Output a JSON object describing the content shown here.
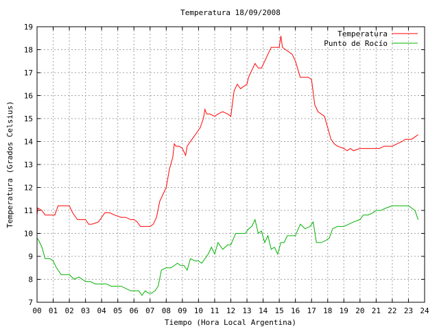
{
  "chart_data": {
    "type": "line",
    "title": "Temperatura 18/09/2008",
    "xlabel": "Tiempo (Hora Local Argentina)",
    "ylabel": "Temperatura (Grados Celsius)",
    "xlim": [
      0,
      24
    ],
    "ylim": [
      7,
      19
    ],
    "grid": true,
    "legend_position": "top-right",
    "x_ticks": [
      {
        "v": 0,
        "label": "00"
      },
      {
        "v": 1,
        "label": "01"
      },
      {
        "v": 2,
        "label": "02"
      },
      {
        "v": 3,
        "label": "03"
      },
      {
        "v": 4,
        "label": "04"
      },
      {
        "v": 5,
        "label": "05"
      },
      {
        "v": 6,
        "label": "06"
      },
      {
        "v": 7,
        "label": "07"
      },
      {
        "v": 8,
        "label": "08"
      },
      {
        "v": 9,
        "label": "09"
      },
      {
        "v": 10,
        "label": "10"
      },
      {
        "v": 11,
        "label": "11"
      },
      {
        "v": 12,
        "label": "12"
      },
      {
        "v": 13,
        "label": "13"
      },
      {
        "v": 14,
        "label": "14"
      },
      {
        "v": 15,
        "label": "15"
      },
      {
        "v": 16,
        "label": "16"
      },
      {
        "v": 17,
        "label": "17"
      },
      {
        "v": 18,
        "label": "18"
      },
      {
        "v": 19,
        "label": "19"
      },
      {
        "v": 20,
        "label": "20"
      },
      {
        "v": 21,
        "label": "21"
      },
      {
        "v": 22,
        "label": "22"
      },
      {
        "v": 23,
        "label": "23"
      },
      {
        "v": 24,
        "label": "24"
      }
    ],
    "y_ticks": [
      {
        "v": 7,
        "label": "7"
      },
      {
        "v": 8,
        "label": "8"
      },
      {
        "v": 9,
        "label": "9"
      },
      {
        "v": 10,
        "label": "10"
      },
      {
        "v": 11,
        "label": "11"
      },
      {
        "v": 12,
        "label": "12"
      },
      {
        "v": 13,
        "label": "13"
      },
      {
        "v": 14,
        "label": "14"
      },
      {
        "v": 15,
        "label": "15"
      },
      {
        "v": 16,
        "label": "16"
      },
      {
        "v": 17,
        "label": "17"
      },
      {
        "v": 18,
        "label": "18"
      },
      {
        "v": 19,
        "label": "19"
      }
    ],
    "series": [
      {
        "name": "Temperatura",
        "color": "#ff0000",
        "x": [
          0,
          0.05,
          0.3,
          0.5,
          1.1,
          1.2,
          1.3,
          2.0,
          2.2,
          2.5,
          3.0,
          3.2,
          3.4,
          3.8,
          4.0,
          4.2,
          4.5,
          4.8,
          5.2,
          5.5,
          5.8,
          6.0,
          6.2,
          6.4,
          6.6,
          7.0,
          7.2,
          7.4,
          7.6,
          7.8,
          8.0,
          8.2,
          8.4,
          8.5,
          8.6,
          8.8,
          9.0,
          9.2,
          9.3,
          9.5,
          9.7,
          9.9,
          10.1,
          10.3,
          10.4,
          10.5,
          10.7,
          11.0,
          11.2,
          11.5,
          11.8,
          12.0,
          12.2,
          12.4,
          12.6,
          13.0,
          13.1,
          13.3,
          13.5,
          13.7,
          13.9,
          14.1,
          14.3,
          14.5,
          14.8,
          15.0,
          15.1,
          15.2,
          15.4,
          15.6,
          15.8,
          16.0,
          16.3,
          16.8,
          17.0,
          17.2,
          17.4,
          17.8,
          18.0,
          18.2,
          18.4,
          18.6,
          19.0,
          19.2,
          19.4,
          19.6,
          20.0,
          20.4,
          20.8,
          21.2,
          21.5,
          22.0,
          22.3,
          22.6,
          22.8,
          23.2,
          23.4,
          23.6
        ],
        "y": [
          10.8,
          11.1,
          11.0,
          10.8,
          10.8,
          11.0,
          11.2,
          11.2,
          10.9,
          10.6,
          10.6,
          10.4,
          10.4,
          10.5,
          10.7,
          10.9,
          10.9,
          10.8,
          10.7,
          10.7,
          10.6,
          10.6,
          10.5,
          10.3,
          10.3,
          10.3,
          10.4,
          10.7,
          11.4,
          11.7,
          12.0,
          12.8,
          13.3,
          13.9,
          13.8,
          13.8,
          13.7,
          13.4,
          13.8,
          14.0,
          14.2,
          14.4,
          14.6,
          15.0,
          15.4,
          15.2,
          15.2,
          15.1,
          15.2,
          15.3,
          15.2,
          15.1,
          16.2,
          16.5,
          16.3,
          16.5,
          16.8,
          17.1,
          17.4,
          17.2,
          17.2,
          17.5,
          17.8,
          18.1,
          18.1,
          18.1,
          18.6,
          18.1,
          18.0,
          17.9,
          17.8,
          17.5,
          16.8,
          16.8,
          16.7,
          15.6,
          15.3,
          15.1,
          14.6,
          14.1,
          13.9,
          13.8,
          13.7,
          13.6,
          13.7,
          13.6,
          13.7,
          13.7,
          13.7,
          13.7,
          13.8,
          13.8,
          13.9,
          14.0,
          14.1,
          14.1,
          14.2,
          14.3
        ]
      },
      {
        "name": "Punto de Rocío",
        "color": "#00b000",
        "x": [
          0,
          0.1,
          0.3,
          0.5,
          0.8,
          1.0,
          1.2,
          1.5,
          1.8,
          2.0,
          2.3,
          2.6,
          3.0,
          3.3,
          3.6,
          4.0,
          4.3,
          4.6,
          5.0,
          5.2,
          5.5,
          5.8,
          6.0,
          6.3,
          6.5,
          6.7,
          6.9,
          7.1,
          7.3,
          7.5,
          7.7,
          8.0,
          8.3,
          8.5,
          8.7,
          8.9,
          9.1,
          9.3,
          9.5,
          9.8,
          10.0,
          10.2,
          10.4,
          10.6,
          10.8,
          11.0,
          11.2,
          11.5,
          11.8,
          12.0,
          12.3,
          12.6,
          12.9,
          13.1,
          13.3,
          13.5,
          13.7,
          13.9,
          14.1,
          14.3,
          14.5,
          14.7,
          14.9,
          15.1,
          15.3,
          15.5,
          15.8,
          16.0,
          16.3,
          16.6,
          16.9,
          17.1,
          17.3,
          17.6,
          17.9,
          18.1,
          18.3,
          18.6,
          19.0,
          19.3,
          19.6,
          20.0,
          20.2,
          20.5,
          20.8,
          21.0,
          21.3,
          21.6,
          22.0,
          22.3,
          22.6,
          23.0,
          23.2,
          23.4,
          23.6
        ],
        "y": [
          9.8,
          9.7,
          9.4,
          8.9,
          8.9,
          8.8,
          8.5,
          8.2,
          8.2,
          8.2,
          8.0,
          8.1,
          7.9,
          7.9,
          7.8,
          7.8,
          7.8,
          7.7,
          7.7,
          7.7,
          7.6,
          7.5,
          7.5,
          7.5,
          7.3,
          7.5,
          7.4,
          7.4,
          7.5,
          7.7,
          8.4,
          8.5,
          8.5,
          8.6,
          8.7,
          8.6,
          8.6,
          8.4,
          8.9,
          8.8,
          8.8,
          8.7,
          8.9,
          9.1,
          9.4,
          9.1,
          9.6,
          9.3,
          9.5,
          9.5,
          10.0,
          10.0,
          10.0,
          10.2,
          10.3,
          10.6,
          10.0,
          10.1,
          9.6,
          9.9,
          9.3,
          9.4,
          9.1,
          9.6,
          9.6,
          9.9,
          9.9,
          9.9,
          10.4,
          10.2,
          10.3,
          10.5,
          9.6,
          9.6,
          9.7,
          9.8,
          10.2,
          10.3,
          10.3,
          10.4,
          10.5,
          10.6,
          10.8,
          10.8,
          10.9,
          11.0,
          11.0,
          11.1,
          11.2,
          11.2,
          11.2,
          11.2,
          11.1,
          11.0,
          10.6
        ]
      }
    ]
  }
}
